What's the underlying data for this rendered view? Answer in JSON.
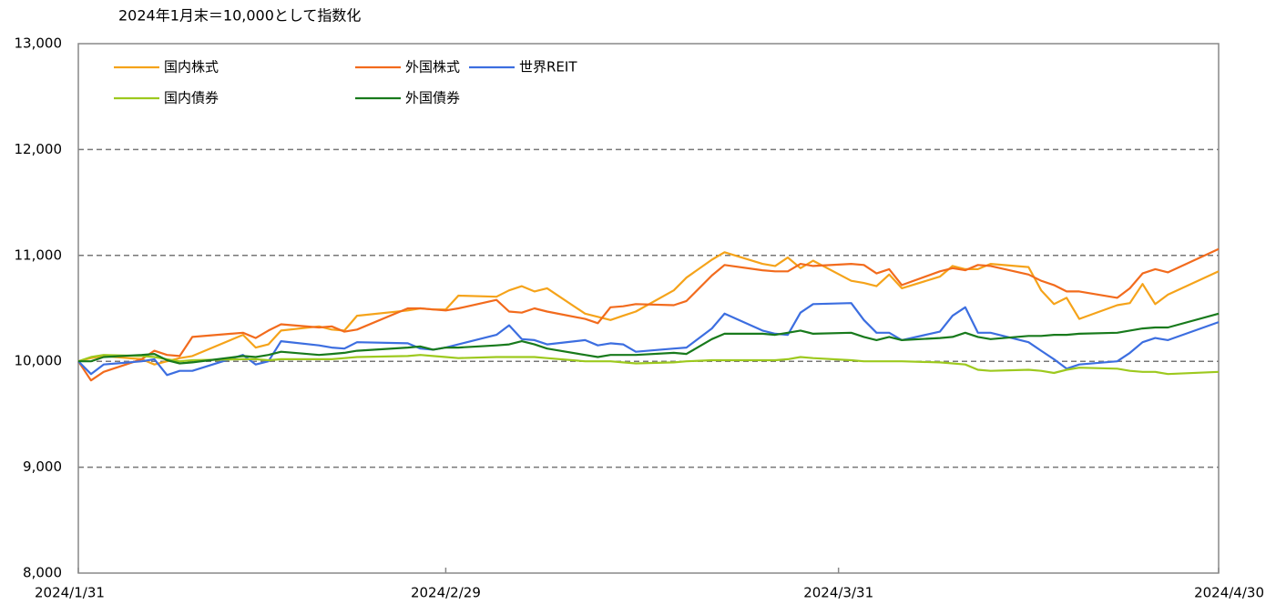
{
  "chart_data": {
    "type": "line",
    "title": "2024年1月末＝10,000として指数化",
    "x": [
      "2024/1/31",
      "2024/2/1",
      "2024/2/2",
      "2024/2/5",
      "2024/2/6",
      "2024/2/7",
      "2024/2/8",
      "2024/2/9",
      "2024/2/13",
      "2024/2/14",
      "2024/2/15",
      "2024/2/16",
      "2024/2/19",
      "2024/2/20",
      "2024/2/21",
      "2024/2/22",
      "2024/2/26",
      "2024/2/27",
      "2024/2/28",
      "2024/2/29",
      "2024/3/1",
      "2024/3/4",
      "2024/3/5",
      "2024/3/6",
      "2024/3/7",
      "2024/3/8",
      "2024/3/11",
      "2024/3/12",
      "2024/3/13",
      "2024/3/14",
      "2024/3/15",
      "2024/3/18",
      "2024/3/19",
      "2024/3/21",
      "2024/3/22",
      "2024/3/25",
      "2024/3/26",
      "2024/3/27",
      "2024/3/28",
      "2024/3/29",
      "2024/4/1",
      "2024/4/2",
      "2024/4/3",
      "2024/4/4",
      "2024/4/5",
      "2024/4/8",
      "2024/4/9",
      "2024/4/10",
      "2024/4/11",
      "2024/4/12",
      "2024/4/15",
      "2024/4/16",
      "2024/4/17",
      "2024/4/18",
      "2024/4/19",
      "2024/4/22",
      "2024/4/23",
      "2024/4/24",
      "2024/4/25",
      "2024/4/26",
      "2024/4/30"
    ],
    "series": [
      {
        "name": "国内株式",
        "color": "#f5a31a",
        "values": [
          10000,
          10030,
          10050,
          10020,
          9970,
          10000,
          10030,
          10050,
          10250,
          10130,
          10160,
          10290,
          10330,
          10300,
          10290,
          10430,
          10480,
          10500,
          10490,
          10490,
          10620,
          10610,
          10670,
          10710,
          10660,
          10690,
          10450,
          10420,
          10390,
          10430,
          10470,
          10670,
          10790,
          10960,
          11030,
          10920,
          10900,
          10980,
          10880,
          10950,
          10760,
          10740,
          10710,
          10820,
          10690,
          10800,
          10900,
          10870,
          10870,
          10920,
          10890,
          10670,
          10540,
          10600,
          10400,
          10530,
          10550,
          10730,
          10540,
          10630,
          10850
        ]
      },
      {
        "name": "外国株式",
        "color": "#f26b1d",
        "values": [
          10000,
          9820,
          9900,
          10020,
          10100,
          10060,
          10050,
          10230,
          10270,
          10220,
          10290,
          10350,
          10320,
          10330,
          10280,
          10300,
          10500,
          10500,
          10490,
          10480,
          10500,
          10580,
          10470,
          10460,
          10500,
          10470,
          10400,
          10360,
          10510,
          10520,
          10540,
          10530,
          10570,
          10810,
          10910,
          10860,
          10850,
          10850,
          10920,
          10900,
          10920,
          10910,
          10830,
          10870,
          10720,
          10850,
          10880,
          10860,
          10910,
          10900,
          10820,
          10760,
          10720,
          10660,
          10660,
          10600,
          10690,
          10830,
          10870,
          10840,
          11060
        ]
      },
      {
        "name": "世界REIT",
        "color": "#3c6ee0",
        "values": [
          10000,
          9880,
          9970,
          10000,
          10020,
          9870,
          9910,
          9910,
          10060,
          9970,
          10000,
          10190,
          10150,
          10130,
          10120,
          10180,
          10170,
          10120,
          10110,
          10130,
          10160,
          10250,
          10340,
          10210,
          10200,
          10160,
          10200,
          10150,
          10170,
          10160,
          10090,
          10120,
          10130,
          10310,
          10450,
          10290,
          10260,
          10250,
          10460,
          10540,
          10550,
          10390,
          10270,
          10270,
          10200,
          10280,
          10430,
          10510,
          10270,
          10270,
          10180,
          10100,
          10020,
          9930,
          9970,
          10000,
          10080,
          10180,
          10220,
          10200,
          10370
        ]
      },
      {
        "name": "国内債券",
        "color": "#9dc91e",
        "values": [
          10000,
          10040,
          10060,
          10050,
          10040,
          10020,
          10000,
          10010,
          10020,
          10020,
          10010,
          10020,
          10020,
          10020,
          10030,
          10040,
          10050,
          10060,
          10050,
          10040,
          10030,
          10040,
          10040,
          10040,
          10040,
          10030,
          10000,
          10000,
          10000,
          9990,
          9980,
          9990,
          10000,
          10010,
          10010,
          10010,
          10010,
          10020,
          10040,
          10030,
          10010,
          10000,
          10000,
          10000,
          10000,
          9990,
          9980,
          9970,
          9920,
          9910,
          9920,
          9910,
          9890,
          9920,
          9940,
          9930,
          9910,
          9900,
          9900,
          9880,
          9900
        ]
      },
      {
        "name": "外国債券",
        "color": "#187a1c",
        "values": [
          10000,
          10000,
          10040,
          10060,
          10070,
          10010,
          9980,
          9990,
          10050,
          10040,
          10060,
          10090,
          10060,
          10070,
          10080,
          10100,
          10130,
          10140,
          10110,
          10130,
          10130,
          10150,
          10160,
          10190,
          10160,
          10120,
          10060,
          10040,
          10060,
          10060,
          10060,
          10080,
          10070,
          10210,
          10260,
          10260,
          10250,
          10270,
          10290,
          10260,
          10270,
          10230,
          10200,
          10230,
          10200,
          10220,
          10230,
          10270,
          10230,
          10210,
          10240,
          10240,
          10250,
          10250,
          10260,
          10270,
          10290,
          10310,
          10320,
          10320,
          10450
        ]
      }
    ],
    "xlim": [
      "2024/1/31",
      "2024/4/30"
    ],
    "xticks": [
      "2024/1/31",
      "2024/2/29",
      "2024/3/31",
      "2024/4/30"
    ],
    "ylim": [
      8000,
      13000
    ],
    "yticks": [
      {
        "value": 8000,
        "label": "8,000"
      },
      {
        "value": 9000,
        "label": "9,000"
      },
      {
        "value": 10000,
        "label": "10,000"
      },
      {
        "value": 11000,
        "label": "11,000"
      },
      {
        "value": 12000,
        "label": "12,000"
      },
      {
        "value": 13000,
        "label": "13,000"
      }
    ],
    "grid": true,
    "legend": "upper left"
  }
}
